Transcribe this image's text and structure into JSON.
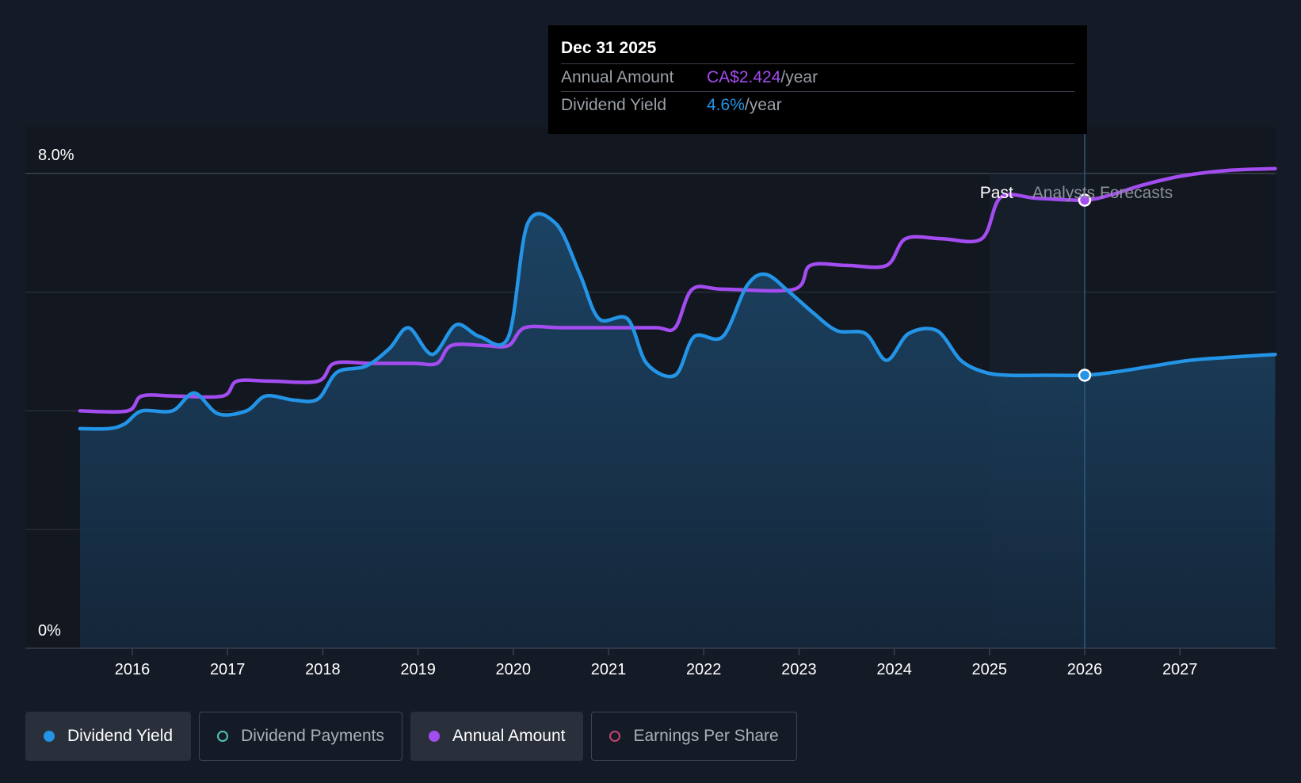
{
  "chart_data": {
    "type": "line",
    "x_axis": {
      "ticks": [
        "2016",
        "2017",
        "2018",
        "2019",
        "2020",
        "2021",
        "2022",
        "2023",
        "2024",
        "2025",
        "2026",
        "2027"
      ],
      "range": [
        2015.0,
        2028.0
      ]
    },
    "y_axis": {
      "min_label": "0%",
      "max_label": "8.0%",
      "range": [
        0,
        8.0
      ],
      "gridlines": [
        0,
        2,
        4,
        6,
        8
      ]
    },
    "regions": {
      "past_label": "Past",
      "forecast_label": "Analysts Forecasts",
      "split_x": 2025.0,
      "divider_x": 2026.0
    },
    "series": [
      {
        "name": "Dividend Yield",
        "color": "#2394e6",
        "area": true,
        "points": [
          [
            2015.45,
            3.7
          ],
          [
            2015.75,
            3.7
          ],
          [
            2015.92,
            3.78
          ],
          [
            2016.1,
            4.0
          ],
          [
            2016.42,
            4.0
          ],
          [
            2016.65,
            4.3
          ],
          [
            2016.9,
            3.95
          ],
          [
            2017.2,
            4.0
          ],
          [
            2017.4,
            4.25
          ],
          [
            2017.7,
            4.18
          ],
          [
            2017.95,
            4.2
          ],
          [
            2018.15,
            4.65
          ],
          [
            2018.45,
            4.75
          ],
          [
            2018.7,
            5.05
          ],
          [
            2018.9,
            5.4
          ],
          [
            2019.15,
            4.95
          ],
          [
            2019.4,
            5.45
          ],
          [
            2019.65,
            5.25
          ],
          [
            2019.95,
            5.25
          ],
          [
            2020.15,
            7.15
          ],
          [
            2020.45,
            7.15
          ],
          [
            2020.7,
            6.3
          ],
          [
            2020.9,
            5.55
          ],
          [
            2021.2,
            5.55
          ],
          [
            2021.4,
            4.8
          ],
          [
            2021.7,
            4.6
          ],
          [
            2021.9,
            5.25
          ],
          [
            2022.2,
            5.25
          ],
          [
            2022.45,
            6.1
          ],
          [
            2022.65,
            6.3
          ],
          [
            2022.9,
            6.0
          ],
          [
            2023.15,
            5.65
          ],
          [
            2023.4,
            5.35
          ],
          [
            2023.7,
            5.3
          ],
          [
            2023.92,
            4.85
          ],
          [
            2024.15,
            5.3
          ],
          [
            2024.45,
            5.35
          ],
          [
            2024.7,
            4.85
          ],
          [
            2024.95,
            4.65
          ],
          [
            2025.2,
            4.6
          ],
          [
            2025.6,
            4.6
          ],
          [
            2026.0,
            4.6
          ],
          [
            2026.3,
            4.65
          ],
          [
            2026.7,
            4.75
          ],
          [
            2027.1,
            4.85
          ],
          [
            2027.5,
            4.9
          ],
          [
            2028.0,
            4.95
          ]
        ]
      },
      {
        "name": "Annual Amount",
        "color": "#a34cef",
        "area": false,
        "points": [
          [
            2015.45,
            4.0
          ],
          [
            2015.95,
            4.0
          ],
          [
            2016.1,
            4.25
          ],
          [
            2016.45,
            4.25
          ],
          [
            2016.95,
            4.25
          ],
          [
            2017.1,
            4.5
          ],
          [
            2017.45,
            4.5
          ],
          [
            2017.95,
            4.5
          ],
          [
            2018.12,
            4.8
          ],
          [
            2018.5,
            4.8
          ],
          [
            2018.95,
            4.8
          ],
          [
            2019.2,
            4.8
          ],
          [
            2019.35,
            5.1
          ],
          [
            2019.7,
            5.1
          ],
          [
            2019.95,
            5.1
          ],
          [
            2020.12,
            5.4
          ],
          [
            2020.5,
            5.4
          ],
          [
            2021.0,
            5.4
          ],
          [
            2021.5,
            5.4
          ],
          [
            2021.7,
            5.4
          ],
          [
            2021.88,
            6.05
          ],
          [
            2022.2,
            6.05
          ],
          [
            2022.95,
            6.05
          ],
          [
            2023.12,
            6.45
          ],
          [
            2023.5,
            6.45
          ],
          [
            2023.92,
            6.45
          ],
          [
            2024.12,
            6.9
          ],
          [
            2024.5,
            6.9
          ],
          [
            2024.92,
            6.9
          ],
          [
            2025.12,
            7.6
          ],
          [
            2025.5,
            7.58
          ],
          [
            2026.0,
            7.55
          ],
          [
            2026.3,
            7.65
          ],
          [
            2026.6,
            7.8
          ],
          [
            2027.0,
            7.95
          ],
          [
            2027.5,
            8.05
          ],
          [
            2028.0,
            8.08
          ]
        ]
      }
    ],
    "highlight": {
      "x": 2026.0,
      "yield_y": 4.6,
      "amount_y": 7.55
    }
  },
  "tooltip": {
    "date": "Dec 31 2025",
    "rows": [
      {
        "label": "Annual Amount",
        "value": "CA$2.424",
        "unit": "/year",
        "color": "#a34cef"
      },
      {
        "label": "Dividend Yield",
        "value": "4.6%",
        "unit": "/year",
        "color": "#2394e6"
      }
    ]
  },
  "legend": [
    {
      "label": "Dividend Yield",
      "color": "#2394e6",
      "active": true,
      "filled": true
    },
    {
      "label": "Dividend Payments",
      "color": "#4fc4b6",
      "active": false,
      "filled": false
    },
    {
      "label": "Annual Amount",
      "color": "#a34cef",
      "active": true,
      "filled": true
    },
    {
      "label": "Earnings Per Share",
      "color": "#c0456f",
      "active": false,
      "filled": false
    }
  ]
}
